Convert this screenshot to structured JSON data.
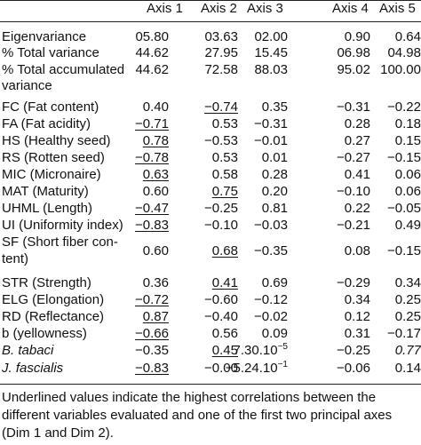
{
  "headers": [
    "Axis 1",
    "Axis 2",
    "Axis 3",
    "Axis 4",
    "Axis 5"
  ],
  "rows": [
    {
      "label": "Eigenvariance",
      "vals": [
        "05.80",
        "03.63",
        "02.00",
        "0.90",
        "0.64"
      ]
    },
    {
      "label": "% Total variance",
      "vals": [
        "44.62",
        "27.95",
        "15.45",
        "06.98",
        "04.98"
      ]
    },
    {
      "label": "% Total accumulated",
      "label2": "variance",
      "vals": [
        "44.62",
        "72.58",
        "88.03",
        "95.02",
        "100.00"
      ]
    },
    {
      "label": "FC (Fat content)",
      "vals": [
        "0.40",
        "−0.74",
        "0.35",
        "−0.31",
        "−0.22"
      ]
    },
    {
      "label": "FA (Fat acidity)",
      "vals": [
        "−0.71",
        "0.53",
        "−0.31",
        "0.28",
        "0.18"
      ]
    },
    {
      "label": "HS (Healthy seed)",
      "vals": [
        "0.78",
        "−0.53",
        "−0.01",
        "0.27",
        "0.15"
      ]
    },
    {
      "label": "RS (Rotten seed)",
      "vals": [
        "−0.78",
        "0.53",
        "0.01",
        "−0.27",
        "−0.15"
      ]
    },
    {
      "label": "MIC (Micronaire)",
      "vals": [
        "0.63",
        "0.58",
        "0.28",
        "0.41",
        "0.06"
      ]
    },
    {
      "label": "MAT (Maturity)",
      "vals": [
        "0.60",
        "0.75",
        "0.20",
        "−0.10",
        "0.06"
      ]
    },
    {
      "label": "UHML (Length)",
      "vals": [
        "−0.47",
        "−0.25",
        "0.81",
        "0.22",
        "−0.05"
      ]
    },
    {
      "label": "UI (Uniformity index)",
      "vals": [
        "−0.83",
        "−0.10",
        "−0.03",
        "−0.21",
        "0.49"
      ]
    },
    {
      "label": "SF (Short fiber con-",
      "label2": "tent)",
      "vals": [
        "0.60",
        "0.68",
        "−0.35",
        "0.08",
        "−0.15"
      ]
    },
    {
      "label": "STR (Strength)",
      "vals": [
        "0.36",
        "0.41",
        "0.69",
        "−0.29",
        "0.34"
      ]
    },
    {
      "label": "ELG (Elongation)",
      "vals": [
        "−0.72",
        "−0.60",
        "−0.12",
        "0.34",
        "0.25"
      ]
    },
    {
      "label": "RD (Reflectance)",
      "vals": [
        "0.87",
        "−0.40",
        "−0.02",
        "0.12",
        "0.25"
      ]
    },
    {
      "label": "b (yellowness)",
      "vals": [
        "−0.66",
        "0.56",
        "0.09",
        "0.31",
        "−0.17"
      ]
    },
    {
      "label": "B. tabaci",
      "vals": [
        "−0.35",
        "0.45",
        "7.30.10",
        "−0.25",
        "0.77"
      ],
      "sup3": "−5"
    },
    {
      "label": "J. fascialis",
      "vals": [
        "−0.83",
        "−0.00",
        "−5.24.10",
        "−0.06",
        "0.14"
      ],
      "sup3": "−1"
    }
  ],
  "footnote": "Underlined values indicate the highest correlations between the different variables evaluated and one of the first two principal axes (Dim 1 and Dim 2)."
}
